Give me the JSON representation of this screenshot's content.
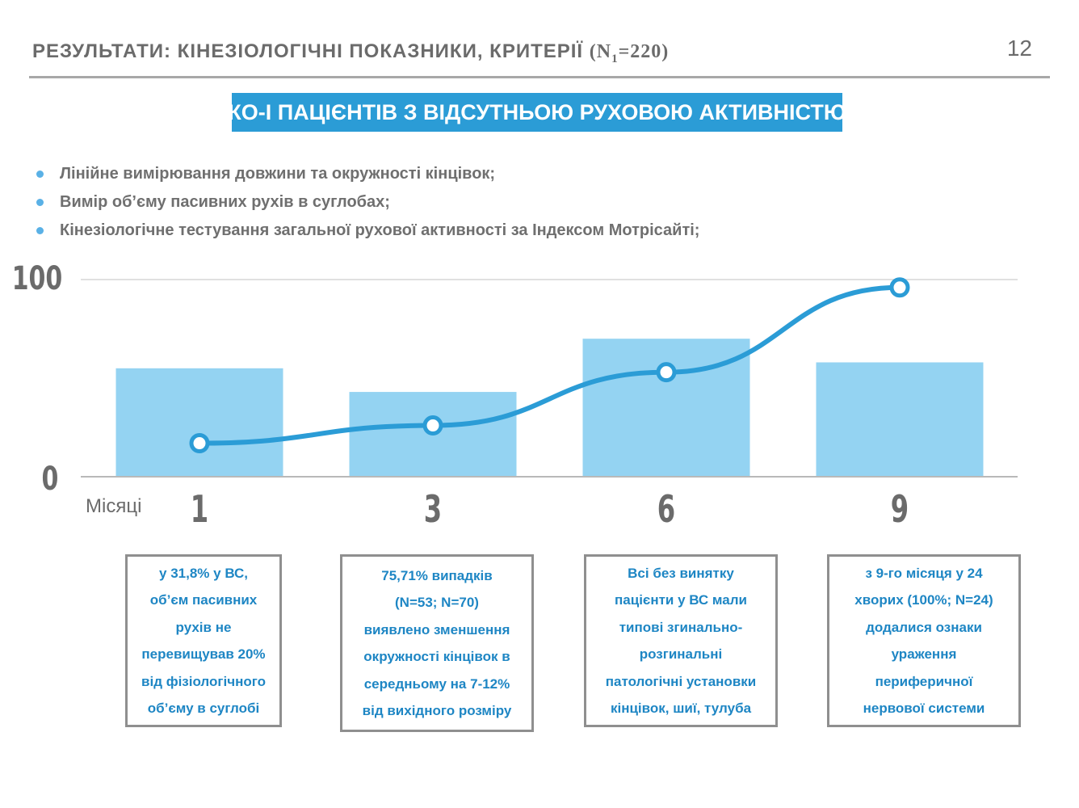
{
  "header": {
    "title_text": "РЕЗУЛЬТАТИ: КІНЕЗІОЛОГІЧНІ ПОКАЗНИКИ, КРИТЕРІЇ",
    "title_n": "N",
    "title_n_sub": "1",
    "title_n_value": "=220)",
    "title_open": "(",
    "page_number": "12"
  },
  "banner": {
    "text": "КО-І ПАЦІЄНТІВ З ВІДСУТНЬОЮ РУХОВОЮ АКТИВНІСТЮ",
    "color": "#2b9cd6"
  },
  "bullets": [
    "Лінійне вимірювання довжини та окружності кінцівок;",
    "Вимір об’єму пасивних рухів в суглобах;",
    "Кінезіологічне тестування загальної рухової активності за Індексом Мотрісайті;"
  ],
  "chart_data": {
    "type": "bar",
    "categories": [
      "1",
      "3",
      "6",
      "9"
    ],
    "xlabel": "Місяці",
    "ylim": [
      0,
      100
    ],
    "y_ticks": [
      "0",
      "100"
    ],
    "bar_values": [
      55,
      43,
      70,
      58
    ],
    "series": [
      {
        "type": "line",
        "values": [
          17,
          26,
          53,
          96
        ]
      }
    ],
    "bar_color": "#94d3f2",
    "line_color": "#2b9cd6"
  },
  "boxes": [
    {
      "lines": [
        "у 31,8% у ВС,",
        "об’єм пасивних",
        "рухів не",
        "перевищував 20%",
        "від фізіологічного",
        "об’єму в суглобі"
      ]
    },
    {
      "lines": [
        "75,71% випадків",
        "(N=53; N=70)",
        "виявлено зменшення",
        "окружності кінцівок в",
        "середньому на 7-12%",
        "від вихідного розміру"
      ]
    },
    {
      "lines": [
        "Всі без винятку",
        "пацієнти у ВС мали",
        "типові згинально-",
        "розгинальні",
        "патологічні установки",
        "кінцівок, шиї, тулуба"
      ]
    },
    {
      "lines": [
        "з 9-го місяця у 24",
        "хворих (100%; N=24)",
        "додалися ознаки",
        "ураження",
        "периферичної",
        "нервової системи"
      ]
    }
  ]
}
